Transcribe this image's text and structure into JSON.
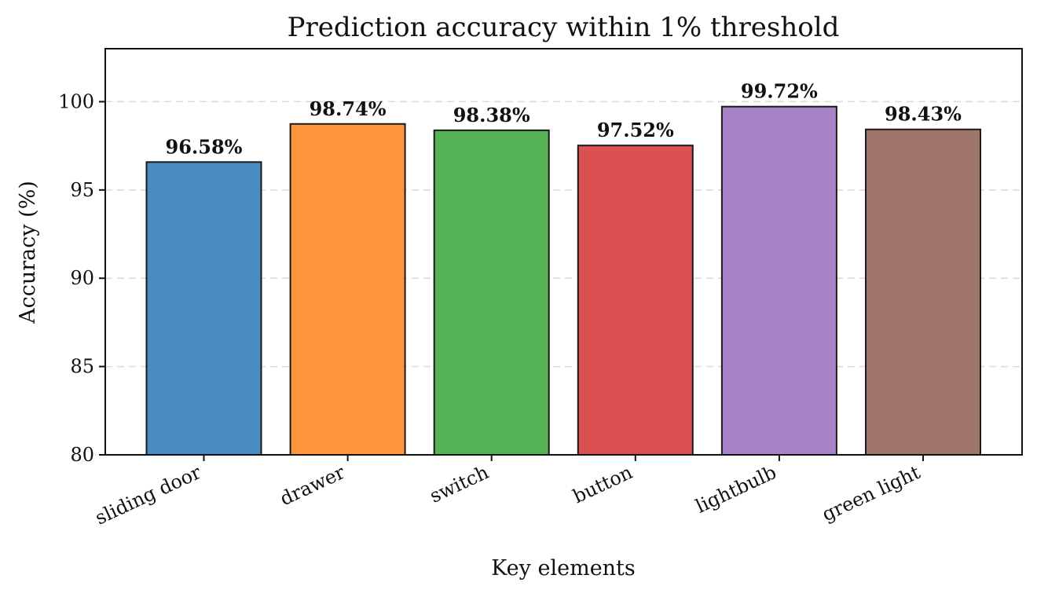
{
  "chart_data": {
    "type": "bar",
    "title": "Prediction accuracy within 1% threshold",
    "xlabel": "Key elements",
    "ylabel": "Accuracy (%)",
    "categories": [
      "sliding door",
      "drawer",
      "switch",
      "button",
      "lightbulb",
      "green light"
    ],
    "values": [
      96.58,
      98.74,
      98.38,
      97.52,
      99.72,
      98.43
    ],
    "value_labels": [
      "96.58%",
      "98.74%",
      "98.38%",
      "97.52%",
      "99.72%",
      "98.43%"
    ],
    "colors": [
      "#4a8cc1",
      "#fd963d",
      "#56b356",
      "#db5051",
      "#a883c6",
      "#9e746b"
    ],
    "ylim": [
      80,
      103
    ],
    "yticks": [
      80,
      85,
      90,
      95,
      100
    ],
    "ytick_labels": [
      "80",
      "85",
      "90",
      "95",
      "100"
    ],
    "grid": "horizontal dashed",
    "legend": "none"
  }
}
